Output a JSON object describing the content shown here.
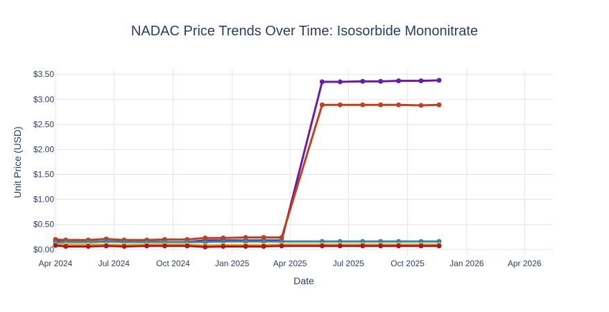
{
  "chart_data": {
    "type": "line",
    "title": "NADAC Price Trends Over Time: Isosorbide Mononitrate",
    "xlabel": "Date",
    "ylabel": "Unit Price (USD)",
    "x_ticks": [
      "Apr 2024",
      "Jul 2024",
      "Oct 2024",
      "Jan 2025",
      "Apr 2025",
      "Jul 2025",
      "Oct 2025",
      "Jan 2026",
      "Apr 2026"
    ],
    "y_ticks": [
      "$0.00",
      "$0.50",
      "$1.00",
      "$1.50",
      "$2.00",
      "$2.50",
      "$3.00",
      "$3.50"
    ],
    "xlim": [
      "2024-04-01",
      "2026-05-15"
    ],
    "ylim": [
      -0.1,
      3.6
    ],
    "grid": true,
    "x": [
      "2024-04-01",
      "2024-04-17",
      "2024-05-22",
      "2024-06-19",
      "2024-07-17",
      "2024-08-21",
      "2024-09-18",
      "2024-10-23",
      "2024-11-20",
      "2024-12-18",
      "2025-01-22",
      "2025-02-19",
      "2025-03-19",
      "2025-05-21",
      "2025-06-18",
      "2025-07-23",
      "2025-08-20",
      "2025-09-17",
      "2025-10-22",
      "2025-11-19"
    ],
    "series": [
      {
        "color": "#6a1aa8",
        "values": [
          0.16,
          0.15,
          0.15,
          0.16,
          0.16,
          0.16,
          0.15,
          0.15,
          0.18,
          0.18,
          0.18,
          0.18,
          0.18,
          3.35,
          3.35,
          3.36,
          3.36,
          3.37,
          3.37,
          3.38
        ]
      },
      {
        "color": "#c13f1c",
        "values": [
          0.2,
          0.19,
          0.19,
          0.21,
          0.19,
          0.19,
          0.2,
          0.2,
          0.23,
          0.23,
          0.24,
          0.24,
          0.24,
          2.89,
          2.89,
          2.89,
          2.89,
          2.89,
          2.88,
          2.89
        ]
      },
      {
        "color": "#2e86ab",
        "values": [
          0.14,
          0.15,
          0.15,
          0.16,
          0.15,
          0.15,
          0.15,
          0.15,
          0.15,
          0.16,
          0.16,
          0.16,
          0.16,
          0.16,
          0.16,
          0.16,
          0.16,
          0.16,
          0.16,
          0.16
        ]
      },
      {
        "color": "#f4a41c",
        "values": [
          0.1,
          0.1,
          0.1,
          0.1,
          0.09,
          0.1,
          0.1,
          0.1,
          0.08,
          0.09,
          0.09,
          0.09,
          0.1,
          0.1,
          0.1,
          0.1,
          0.1,
          0.1,
          0.1,
          0.1
        ]
      },
      {
        "color": "#a01c2c",
        "values": [
          0.08,
          0.06,
          0.06,
          0.07,
          0.06,
          0.07,
          0.07,
          0.07,
          0.05,
          0.06,
          0.06,
          0.06,
          0.07,
          0.07,
          0.07,
          0.07,
          0.07,
          0.07,
          0.07,
          0.07
        ]
      }
    ]
  }
}
